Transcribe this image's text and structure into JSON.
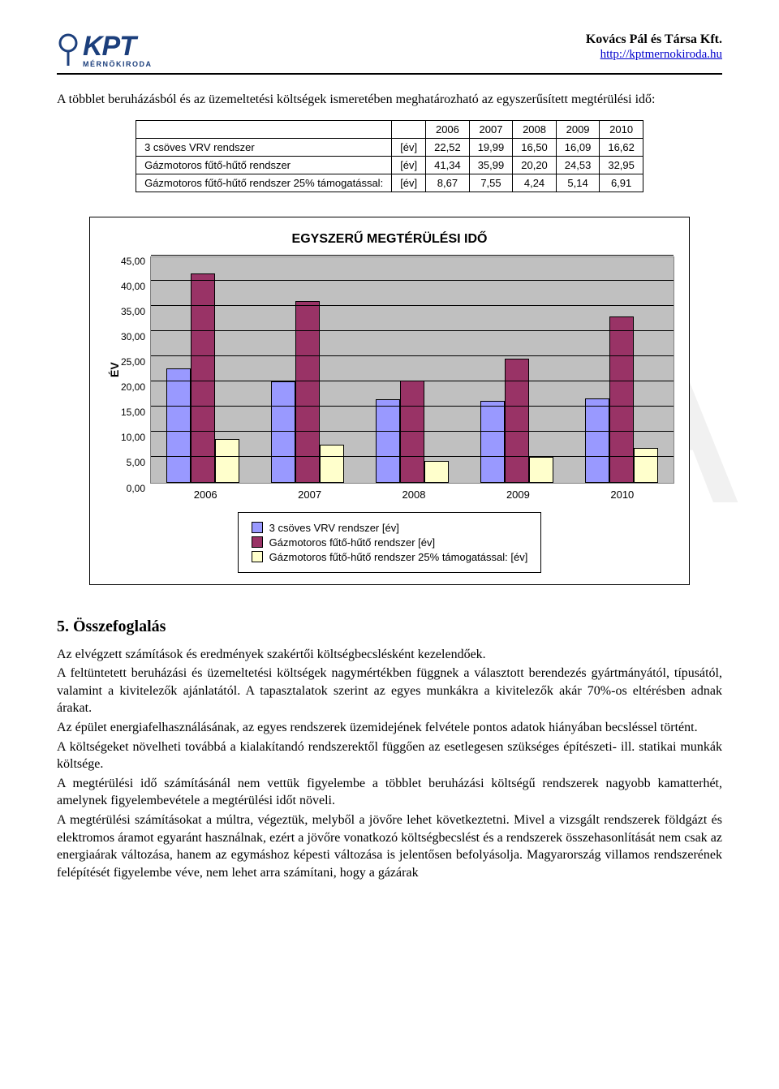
{
  "header": {
    "logo_main": "KPT",
    "logo_sub": "MÉRNÖKIRODA",
    "company": "Kovács Pál és Társa Kft.",
    "url": "http://kptmernokiroda.hu"
  },
  "intro_text": "A többlet beruházásból és az üzemeltetési költségek ismeretében meghatározható az egyszerűsített megtérülési idő:",
  "table": {
    "columns": [
      "2006",
      "2007",
      "2008",
      "2009",
      "2010"
    ],
    "rows": [
      {
        "label": "3 csöves VRV rendszer",
        "unit": "[év]",
        "values": [
          "22,52",
          "19,99",
          "16,50",
          "16,09",
          "16,62"
        ]
      },
      {
        "label": "Gázmotoros fűtő-hűtő rendszer",
        "unit": "[év]",
        "values": [
          "41,34",
          "35,99",
          "20,20",
          "24,53",
          "32,95"
        ]
      },
      {
        "label": "Gázmotoros fűtő-hűtő rendszer 25% támogatással:",
        "unit": "[év]",
        "values": [
          "8,67",
          "7,55",
          "4,24",
          "5,14",
          "6,91"
        ]
      }
    ]
  },
  "chart": {
    "type": "bar-grouped",
    "title": "EGYSZERŰ MEGTÉRÜLÉSI IDŐ",
    "ylab": "ÉV",
    "ylim": [
      0,
      45
    ],
    "ytick_step": 5,
    "ytick_labels": [
      "0,00",
      "5,00",
      "10,00",
      "15,00",
      "20,00",
      "25,00",
      "30,00",
      "35,00",
      "40,00",
      "45,00"
    ],
    "plot_bg": "#c0c0c0",
    "grid_color": "#000000",
    "categories": [
      "2006",
      "2007",
      "2008",
      "2009",
      "2010"
    ],
    "series": [
      {
        "name": "3 csöves VRV rendszer [év]",
        "color": "#9999ff",
        "values": [
          22.52,
          19.99,
          16.5,
          16.09,
          16.62
        ]
      },
      {
        "name": "Gázmotoros fűtő-hűtő rendszer [év]",
        "color": "#993366",
        "values": [
          41.34,
          35.99,
          20.2,
          24.53,
          32.95
        ]
      },
      {
        "name": "Gázmotoros fűtő-hűtő rendszer 25% támogatással: [év]",
        "color": "#ffffcc",
        "values": [
          8.67,
          7.55,
          4.24,
          5.14,
          6.91
        ]
      }
    ]
  },
  "section": {
    "heading": "5. Összefoglalás",
    "paragraphs": [
      "Az elvégzett számítások és eredmények szakértői költségbecslésként kezelendőek.",
      "A feltüntetett beruházási és üzemeltetési költségek nagymértékben függnek a választott berendezés gyártmányától, típusától, valamint a kivitelezők ajánlatától. A tapasztalatok szerint az egyes munkákra a kivitelezők akár 70%-os eltérésben adnak árakat.",
      "Az épület energiafelhasználásának, az egyes rendszerek üzemidejének felvétele pontos adatok hiányában becsléssel történt.",
      "A költségeket növelheti továbbá a kialakítandó rendszerektől függően az esetlegesen szükséges építészeti- ill. statikai munkák költsége.",
      "A megtérülési idő számításánál nem vettük figyelembe a többlet beruházási költségű rendszerek nagyobb kamatterhét, amelynek figyelembevétele a megtérülési időt növeli.",
      "A megtérülési számításokat a múltra, végeztük, melyből a jövőre lehet következtetni. Mivel a vizsgált rendszerek földgázt és elektromos áramot egyaránt használnak, ezért a jövőre vonatkozó költségbecslést és a rendszerek összehasonlítását nem csak az energiaárak változása, hanem az egymáshoz képesti változása is jelentősen befolyásolja. Magyarország villamos rendszerének felépítését figyelembe véve, nem lehet arra számítani, hogy a gázárak"
    ]
  }
}
